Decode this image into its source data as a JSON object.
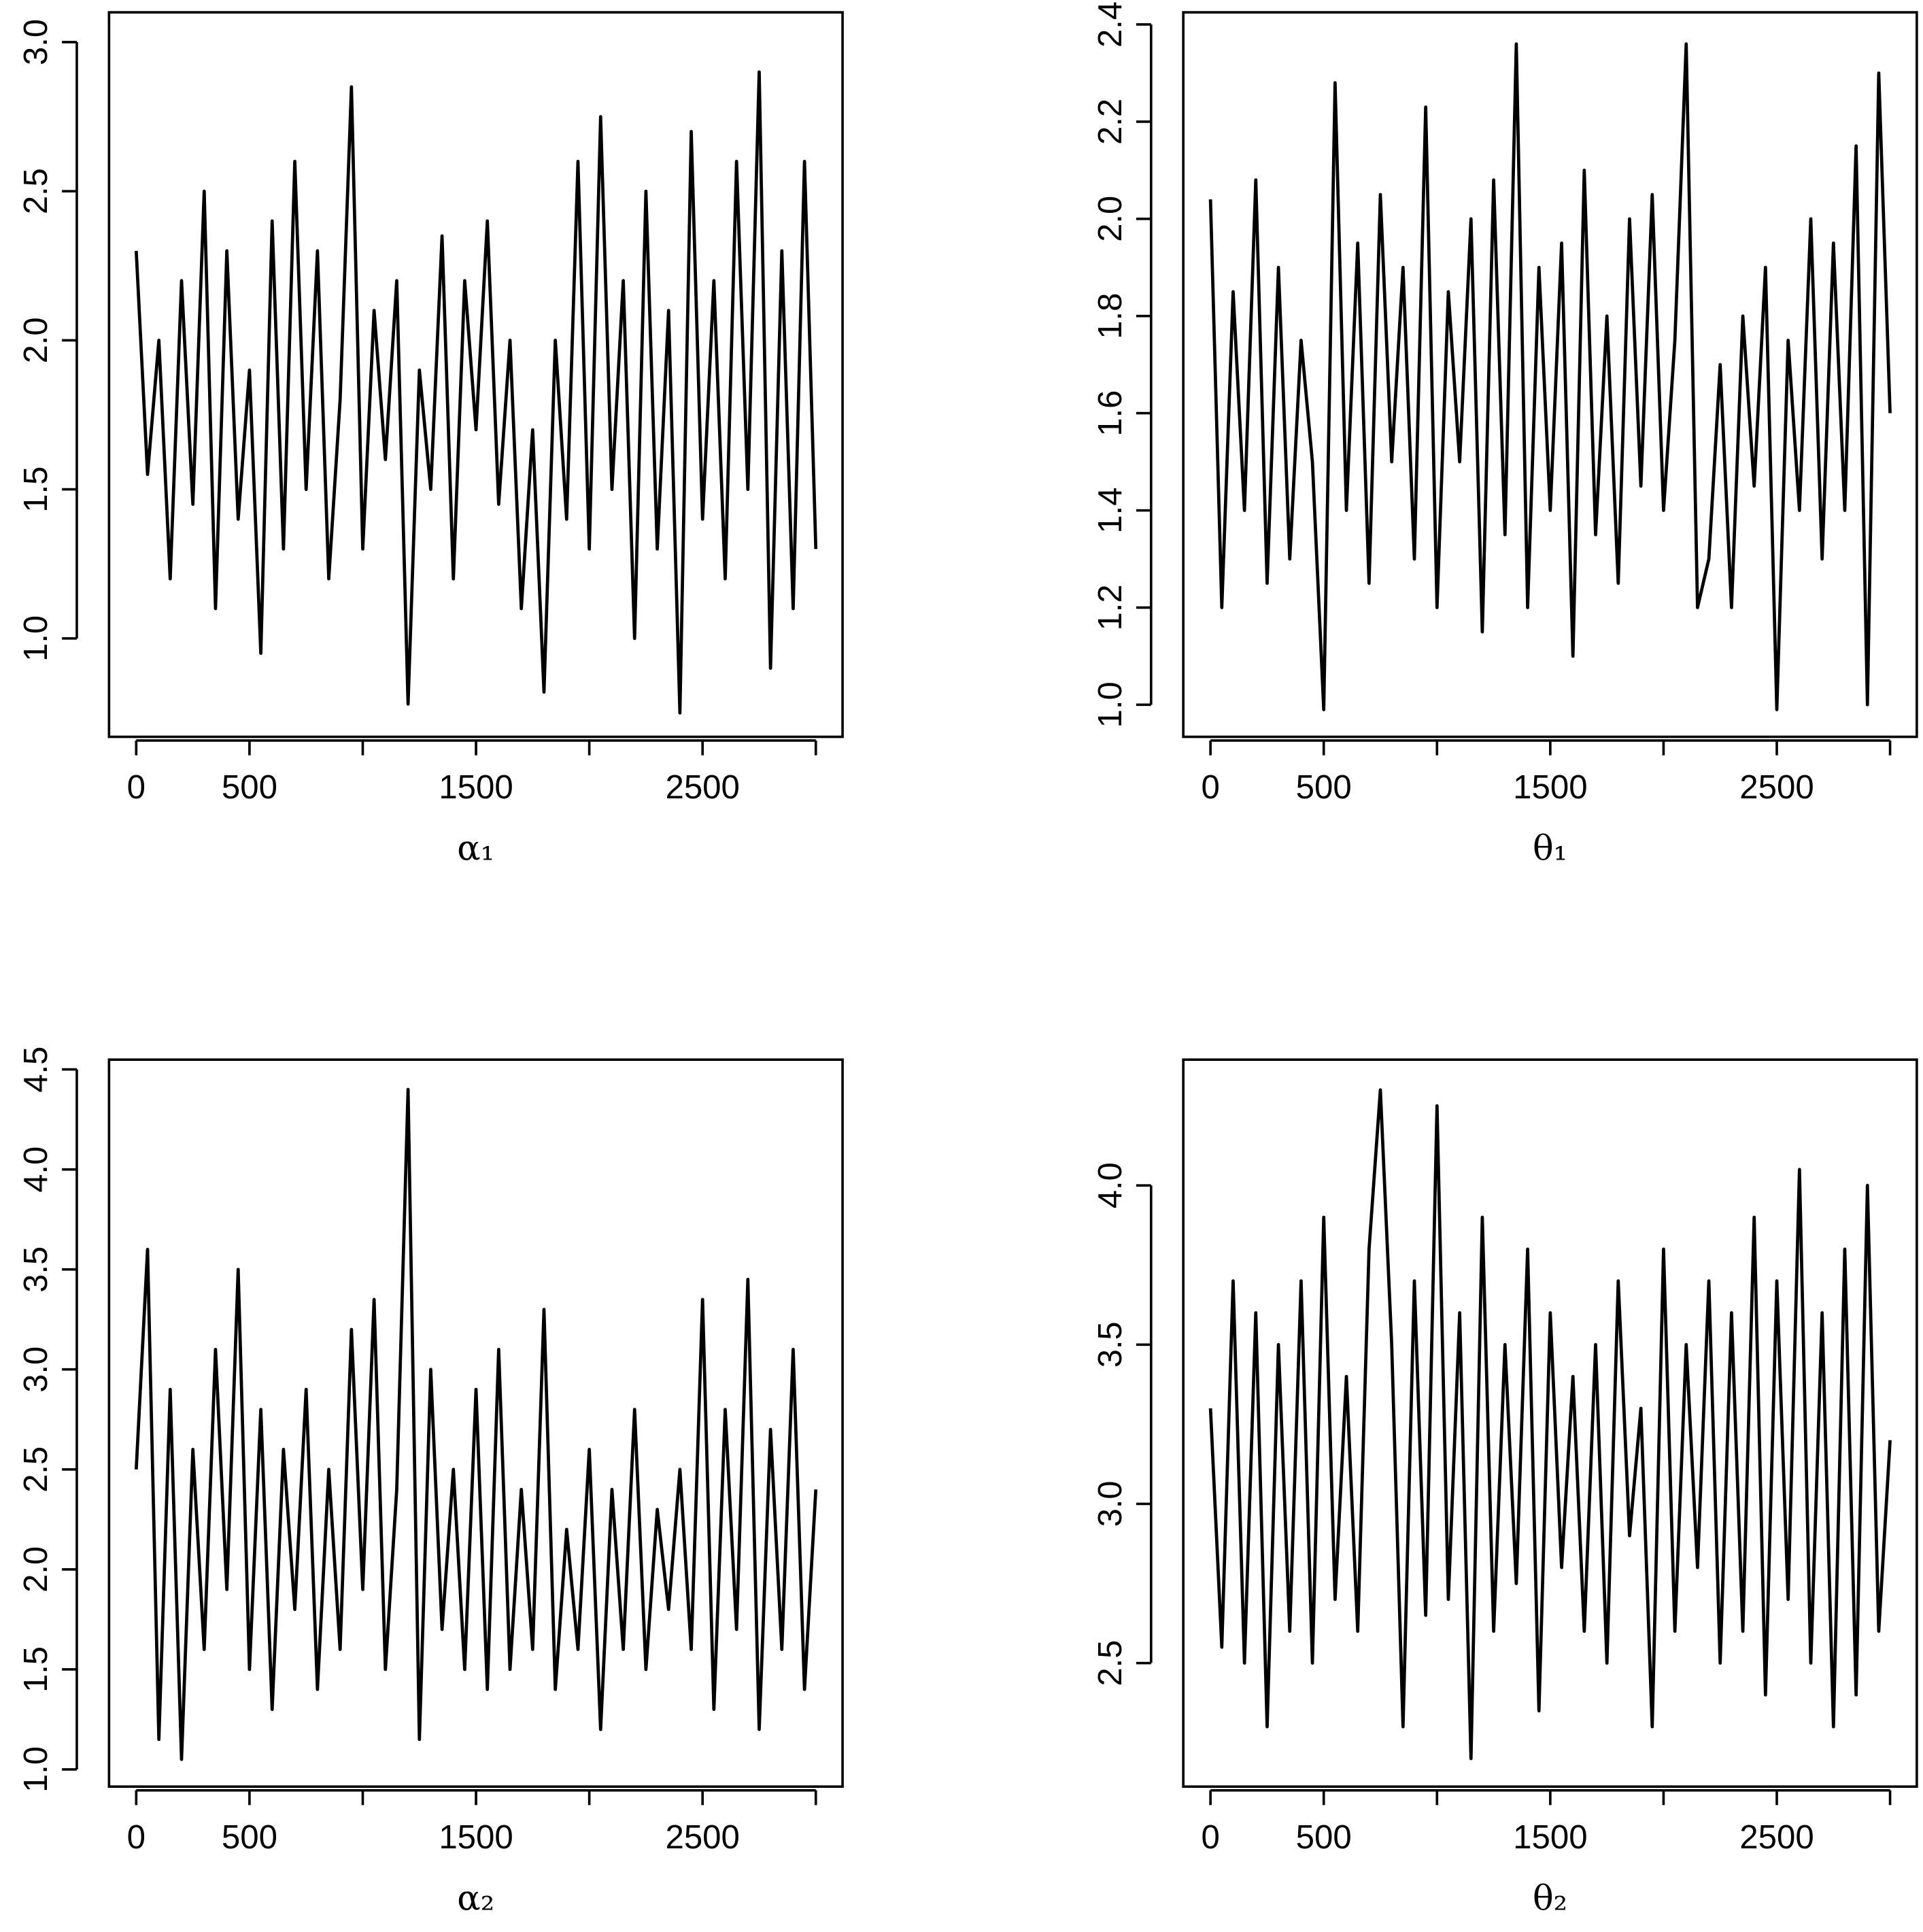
{
  "chart_data": [
    {
      "type": "line",
      "xlabel": "α₁",
      "color": "#000000",
      "xlim": [
        -120,
        3118
      ],
      "ylim": [
        0.67,
        3.1
      ],
      "xticks": [
        0,
        500,
        1000,
        1500,
        2000,
        2500,
        3000
      ],
      "yticks": [
        {
          "value": 1,
          "label": "1.0"
        },
        1.5,
        {
          "value": 2,
          "label": "2.0"
        },
        2.5,
        {
          "value": 3,
          "label": "3.0"
        }
      ],
      "x": [
        0,
        50,
        100,
        150,
        200,
        250,
        300,
        350,
        400,
        450,
        500,
        550,
        600,
        650,
        700,
        750,
        800,
        850,
        900,
        950,
        1000,
        1050,
        1100,
        1150,
        1200,
        1250,
        1300,
        1350,
        1400,
        1450,
        1500,
        1550,
        1600,
        1650,
        1700,
        1750,
        1800,
        1850,
        1900,
        1950,
        2000,
        2050,
        2100,
        2150,
        2200,
        2250,
        2300,
        2350,
        2400,
        2450,
        2500,
        2550,
        2600,
        2650,
        2700,
        2750,
        2800,
        2850,
        2900,
        2950,
        3000
      ],
      "values": [
        2.3,
        1.55,
        2.0,
        1.2,
        2.2,
        1.45,
        2.5,
        1.1,
        2.3,
        1.4,
        1.9,
        0.95,
        2.4,
        1.3,
        2.6,
        1.5,
        2.3,
        1.2,
        1.8,
        2.85,
        1.3,
        2.1,
        1.6,
        2.2,
        0.78,
        1.9,
        1.5,
        2.35,
        1.2,
        2.2,
        1.7,
        2.4,
        1.45,
        2.0,
        1.1,
        1.7,
        0.82,
        2.0,
        1.4,
        2.6,
        1.3,
        2.75,
        1.5,
        2.2,
        1.0,
        2.5,
        1.3,
        2.1,
        0.75,
        2.7,
        1.4,
        2.2,
        1.2,
        2.6,
        1.5,
        2.9,
        0.9,
        2.3,
        1.1,
        2.6,
        1.3
      ]
    },
    {
      "type": "line",
      "xlabel": "θ₁",
      "color": "#000000",
      "xlim": [
        -120,
        3118
      ],
      "ylim": [
        0.934,
        2.425
      ],
      "xticks": [
        0,
        500,
        1000,
        1500,
        2000,
        2500,
        3000
      ],
      "yticks": [
        {
          "value": 1,
          "label": "1.0"
        },
        1.2,
        1.4,
        1.6,
        1.8,
        {
          "value": 2,
          "label": "2.0"
        },
        2.2,
        2.4
      ],
      "x": [
        0,
        50,
        100,
        150,
        200,
        250,
        300,
        350,
        400,
        450,
        500,
        550,
        600,
        650,
        700,
        750,
        800,
        850,
        900,
        950,
        1000,
        1050,
        1100,
        1150,
        1200,
        1250,
        1300,
        1350,
        1400,
        1450,
        1500,
        1550,
        1600,
        1650,
        1700,
        1750,
        1800,
        1850,
        1900,
        1950,
        2000,
        2050,
        2100,
        2150,
        2200,
        2250,
        2300,
        2350,
        2400,
        2450,
        2500,
        2550,
        2600,
        2650,
        2700,
        2750,
        2800,
        2850,
        2900,
        2950,
        3000
      ],
      "values": [
        2.04,
        1.2,
        1.85,
        1.4,
        2.08,
        1.25,
        1.9,
        1.3,
        1.75,
        1.5,
        0.99,
        2.28,
        1.4,
        1.95,
        1.25,
        2.05,
        1.5,
        1.9,
        1.3,
        2.23,
        1.2,
        1.85,
        1.5,
        2.0,
        1.15,
        2.08,
        1.35,
        2.36,
        1.2,
        1.9,
        1.4,
        1.95,
        1.1,
        2.1,
        1.35,
        1.8,
        1.25,
        2.0,
        1.45,
        2.05,
        1.4,
        1.75,
        2.36,
        1.2,
        1.3,
        1.7,
        1.2,
        1.8,
        1.45,
        1.9,
        0.99,
        1.75,
        1.4,
        2.0,
        1.3,
        1.95,
        1.4,
        2.15,
        1.0,
        2.3,
        1.6
      ]
    },
    {
      "type": "line",
      "xlabel": "α₂",
      "color": "#000000",
      "xlim": [
        -120,
        3118
      ],
      "ylim": [
        0.914,
        4.549
      ],
      "xticks": [
        0,
        500,
        1000,
        1500,
        2000,
        2500,
        3000
      ],
      "yticks": [
        {
          "value": 1,
          "label": "1.0"
        },
        1.5,
        {
          "value": 2,
          "label": "2.0"
        },
        2.5,
        {
          "value": 3,
          "label": "3.0"
        },
        3.5,
        {
          "value": 4,
          "label": "4.0"
        },
        4.5
      ],
      "x": [
        0,
        50,
        100,
        150,
        200,
        250,
        300,
        350,
        400,
        450,
        500,
        550,
        600,
        650,
        700,
        750,
        800,
        850,
        900,
        950,
        1000,
        1050,
        1100,
        1150,
        1200,
        1250,
        1300,
        1350,
        1400,
        1450,
        1500,
        1550,
        1600,
        1650,
        1700,
        1750,
        1800,
        1850,
        1900,
        1950,
        2000,
        2050,
        2100,
        2150,
        2200,
        2250,
        2300,
        2350,
        2400,
        2450,
        2500,
        2550,
        2600,
        2650,
        2700,
        2750,
        2800,
        2850,
        2900,
        2950,
        3000
      ],
      "values": [
        2.5,
        3.6,
        1.15,
        2.9,
        1.05,
        2.6,
        1.6,
        3.1,
        1.9,
        3.5,
        1.5,
        2.8,
        1.3,
        2.6,
        1.8,
        2.9,
        1.4,
        2.5,
        1.6,
        3.2,
        1.9,
        3.35,
        1.5,
        2.4,
        4.4,
        1.15,
        3.0,
        1.7,
        2.5,
        1.5,
        2.9,
        1.4,
        3.1,
        1.5,
        2.4,
        1.6,
        3.3,
        1.4,
        2.2,
        1.6,
        2.6,
        1.2,
        2.4,
        1.6,
        2.8,
        1.5,
        2.3,
        1.8,
        2.5,
        1.6,
        3.35,
        1.3,
        2.8,
        1.7,
        3.45,
        1.2,
        2.7,
        1.6,
        3.1,
        1.4,
        2.4
      ]
    },
    {
      "type": "line",
      "xlabel": "θ₂",
      "color": "#000000",
      "xlim": [
        -120,
        3118
      ],
      "ylim": [
        2.112,
        4.395
      ],
      "xticks": [
        0,
        500,
        1000,
        1500,
        2000,
        2500,
        3000
      ],
      "yticks": [
        2.5,
        {
          "value": 3,
          "label": "3.0"
        },
        3.5,
        {
          "value": 4,
          "label": "4.0"
        }
      ],
      "x": [
        0,
        50,
        100,
        150,
        200,
        250,
        300,
        350,
        400,
        450,
        500,
        550,
        600,
        650,
        700,
        750,
        800,
        850,
        900,
        950,
        1000,
        1050,
        1100,
        1150,
        1200,
        1250,
        1300,
        1350,
        1400,
        1450,
        1500,
        1550,
        1600,
        1650,
        1700,
        1750,
        1800,
        1850,
        1900,
        1950,
        2000,
        2050,
        2100,
        2150,
        2200,
        2250,
        2300,
        2350,
        2400,
        2450,
        2500,
        2550,
        2600,
        2650,
        2700,
        2750,
        2800,
        2850,
        2900,
        2950,
        3000
      ],
      "values": [
        3.3,
        2.55,
        3.7,
        2.5,
        3.6,
        2.3,
        3.5,
        2.6,
        3.7,
        2.5,
        3.9,
        2.7,
        3.4,
        2.6,
        3.8,
        4.3,
        3.5,
        2.3,
        3.7,
        2.65,
        4.25,
        2.7,
        3.6,
        2.2,
        3.9,
        2.6,
        3.5,
        2.75,
        3.8,
        2.35,
        3.6,
        2.8,
        3.4,
        2.6,
        3.5,
        2.5,
        3.7,
        2.9,
        3.3,
        2.3,
        3.8,
        2.6,
        3.5,
        2.8,
        3.7,
        2.5,
        3.6,
        2.6,
        3.9,
        2.4,
        3.7,
        2.7,
        4.05,
        2.5,
        3.6,
        2.3,
        3.8,
        2.4,
        4.0,
        2.6,
        3.2
      ]
    }
  ]
}
